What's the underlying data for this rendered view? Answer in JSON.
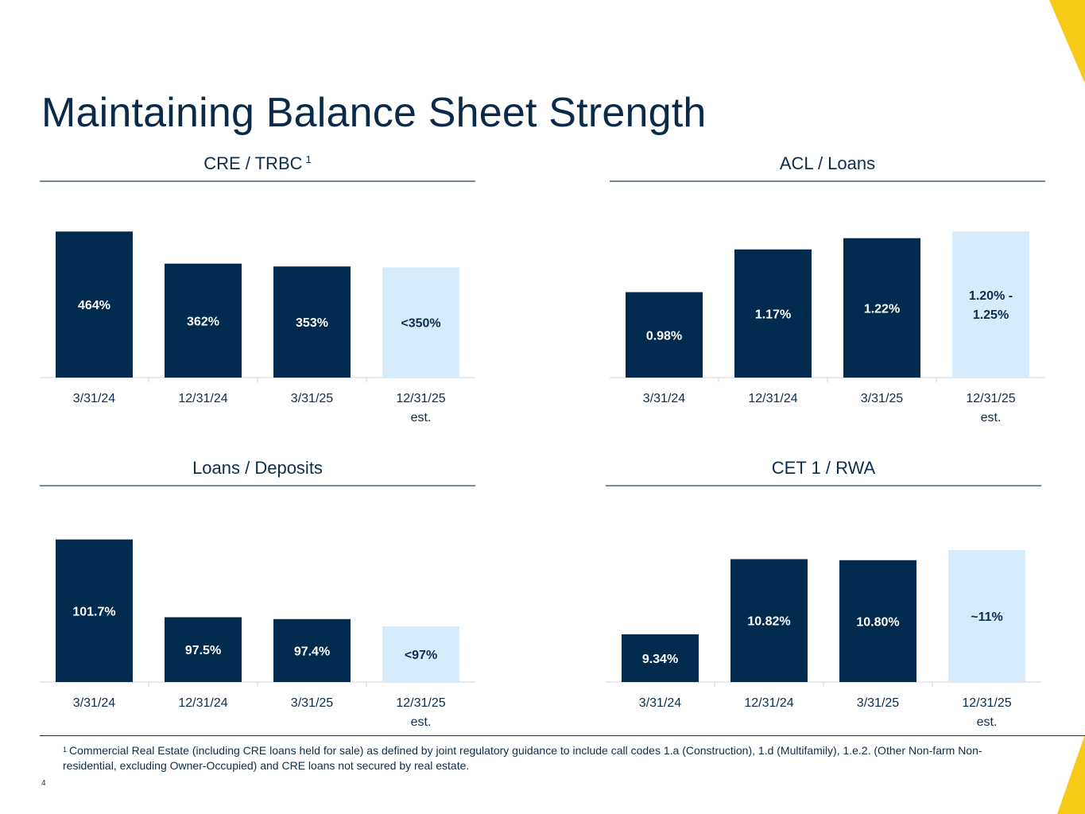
{
  "title": "Maintaining Balance Sheet Strength",
  "colors": {
    "navy": "#002b4e",
    "light_blue": "#d6ebfb",
    "accent_yellow": "#f7ca17",
    "text": "#0d2d4d"
  },
  "chart_data": [
    {
      "type": "bar",
      "title": "CRE / TRBC",
      "title_superscript": "1",
      "categories": [
        "3/31/24",
        "12/31/24",
        "3/31/25",
        "12/31/25"
      ],
      "category_sublabels": [
        "",
        "",
        "",
        "est."
      ],
      "values": [
        464,
        362,
        353,
        350
      ],
      "value_labels": [
        "464%",
        "362%",
        "353%",
        "<350%"
      ],
      "estimate_flags": [
        false,
        false,
        false,
        true
      ],
      "unit": "%",
      "ylim": [
        0,
        500
      ],
      "xlabel": "",
      "ylabel": "",
      "grid": false
    },
    {
      "type": "bar",
      "title": "ACL / Loans",
      "categories": [
        "3/31/24",
        "12/31/24",
        "3/31/25",
        "12/31/25"
      ],
      "category_sublabels": [
        "",
        "",
        "",
        "est."
      ],
      "values": [
        0.98,
        1.17,
        1.22,
        1.25
      ],
      "value_labels": [
        "0.98%",
        "1.17%",
        "1.22%",
        "1.20% -\n1.25%"
      ],
      "estimate_flags": [
        false,
        false,
        false,
        true
      ],
      "unit": "%",
      "ylim": [
        0.6,
        1.3
      ],
      "xlabel": "",
      "ylabel": "",
      "grid": false
    },
    {
      "type": "bar",
      "title": "Loans / Deposits",
      "categories": [
        "3/31/24",
        "12/31/24",
        "3/31/25",
        "12/31/25"
      ],
      "category_sublabels": [
        "",
        "",
        "",
        "est."
      ],
      "values": [
        101.7,
        97.5,
        97.4,
        97
      ],
      "value_labels": [
        "101.7%",
        "97.5%",
        "97.4%",
        "<97%"
      ],
      "estimate_flags": [
        false,
        false,
        false,
        true
      ],
      "unit": "%",
      "ylim": [
        94,
        102.5
      ],
      "xlabel": "",
      "ylabel": "",
      "grid": false
    },
    {
      "type": "bar",
      "title": "CET 1 / RWA",
      "categories": [
        "3/31/24",
        "12/31/24",
        "3/31/25",
        "12/31/25"
      ],
      "category_sublabels": [
        "",
        "",
        "",
        "est."
      ],
      "values": [
        9.34,
        10.82,
        10.8,
        11
      ],
      "value_labels": [
        "9.34%",
        "10.82%",
        "10.80%",
        "~11%"
      ],
      "estimate_flags": [
        false,
        false,
        false,
        true
      ],
      "unit": "%",
      "ylim": [
        8.4,
        11.5
      ],
      "xlabel": "",
      "ylabel": "",
      "grid": false
    }
  ],
  "footnote": {
    "marker": "1",
    "text": "Commercial Real Estate (including CRE loans held for sale) as defined by joint regulatory guidance to include call codes 1.a (Construction), 1.d (Multifamily), 1.e.2. (Other Non-farm Non-residential, excluding Owner-Occupied) and CRE loans not secured by real estate."
  },
  "page_number": "4"
}
